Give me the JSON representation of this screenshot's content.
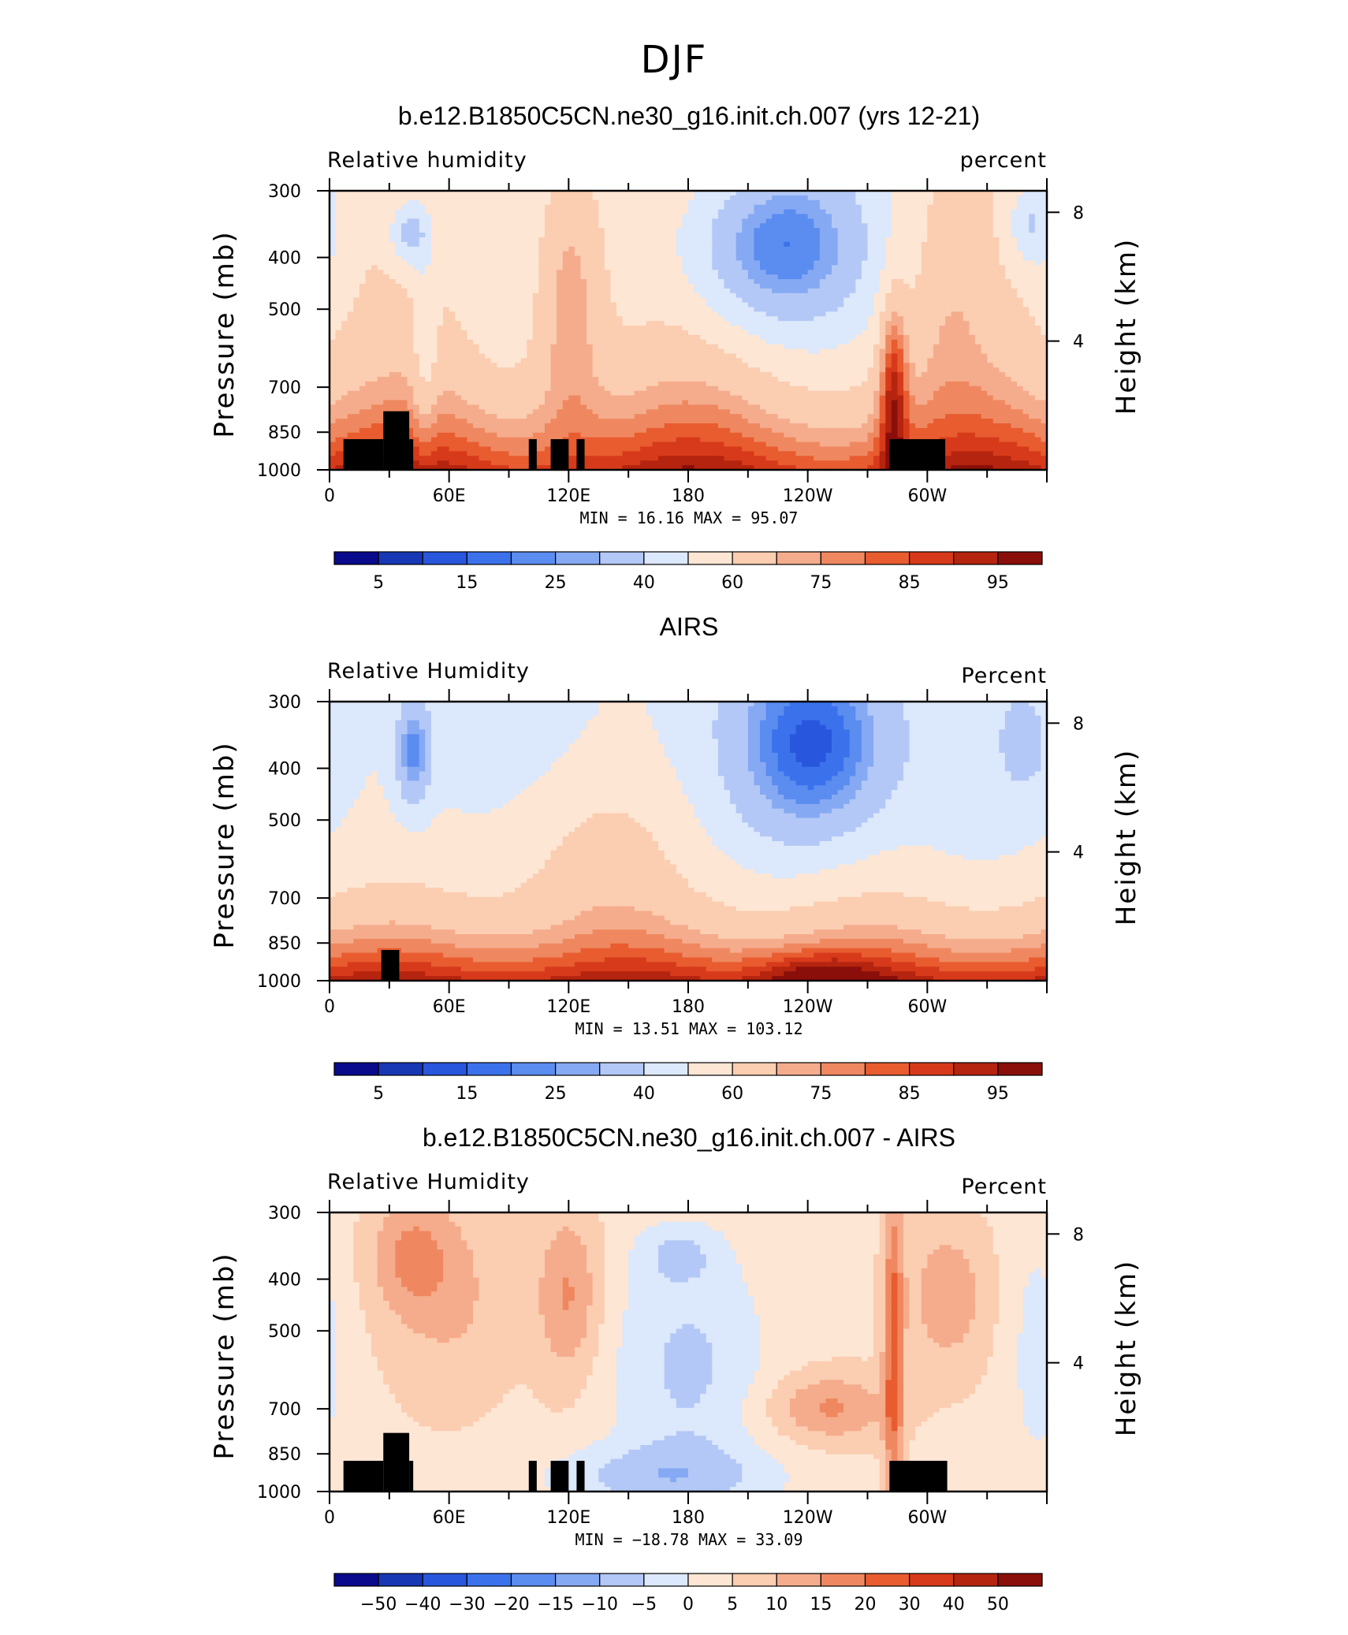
{
  "figure": {
    "title": "DJF"
  },
  "colors": {
    "abs_palette": [
      "#0a0a8c",
      "#1837b5",
      "#2856dc",
      "#3b72ec",
      "#5b8cf0",
      "#86a9f3",
      "#b3c8f6",
      "#dce8fb",
      "#fde6d4",
      "#fbcdb1",
      "#f5ac8c",
      "#ef8860",
      "#e85c30",
      "#d73a1a",
      "#b5240f",
      "#8a0f0a"
    ],
    "diff_palette": [
      "#0a0a8c",
      "#1837b5",
      "#2856dc",
      "#3b72ec",
      "#5b8cf0",
      "#86a9f3",
      "#b3c8f6",
      "#dce8fb",
      "#fde6d4",
      "#fbcdb1",
      "#f5ac8c",
      "#ef8860",
      "#e85c30",
      "#d73a1a",
      "#b5240f",
      "#8a0f0a"
    ],
    "land_mask": "#000000"
  },
  "panels": [
    {
      "title": "b.e12.B1850C5CN.ne30_g16.init.ch.007 (yrs 12-21)",
      "left_label": "Relative humidity",
      "right_label": "percent",
      "minmax": "MIN =   16.16   MAX =   95.07",
      "colorbar_labels": [
        "5",
        "15",
        "25",
        "40",
        "60",
        "75",
        "85",
        "95"
      ],
      "colorbar_label_positions": [
        1,
        3,
        5,
        7,
        9,
        11,
        13,
        15
      ]
    },
    {
      "title": "AIRS",
      "left_label": "Relative Humidity",
      "right_label": "Percent",
      "minmax": "MIN =   13.51   MAX =  103.12",
      "colorbar_labels": [
        "5",
        "15",
        "25",
        "40",
        "60",
        "75",
        "85",
        "95"
      ],
      "colorbar_label_positions": [
        1,
        3,
        5,
        7,
        9,
        11,
        13,
        15
      ]
    },
    {
      "title": "b.e12.B1850C5CN.ne30_g16.init.ch.007 - AIRS",
      "left_label": "Relative Humidity",
      "right_label": "Percent",
      "minmax": "MIN =  −18.78   MAX =    33.09",
      "colorbar_labels": [
        "−50",
        "−40",
        "−30",
        "−20",
        "−15",
        "−10",
        "−5",
        "0",
        "5",
        "10",
        "15",
        "20",
        "30",
        "40",
        "50"
      ],
      "colorbar_label_positions": [
        1,
        2,
        3,
        4,
        5,
        6,
        7,
        8,
        9,
        10,
        11,
        12,
        13,
        14,
        15
      ]
    }
  ],
  "chart_data": [
    {
      "type": "heatmap",
      "title": "b.e12.B1850C5CN.ne30_g16.init.ch.007 (yrs 12-21)",
      "variable": "Relative humidity",
      "units": "percent",
      "x_ticks": [
        "0",
        "60E",
        "120E",
        "180",
        "120W",
        "60W"
      ],
      "x_range_deg_east": [
        0,
        360
      ],
      "y_ticks_pressure_mb": [
        300,
        400,
        500,
        700,
        850,
        1000
      ],
      "y_ticks_height_km": [
        8,
        4
      ],
      "ylim_mb": [
        1000,
        300
      ],
      "y_scale": "log",
      "contour_levels": [
        5,
        10,
        15,
        20,
        25,
        30,
        40,
        50,
        60,
        70,
        75,
        80,
        85,
        90,
        95
      ],
      "min": 16.16,
      "max": 95.07
    },
    {
      "type": "heatmap",
      "title": "AIRS",
      "variable": "Relative Humidity",
      "units": "Percent",
      "x_ticks": [
        "0",
        "60E",
        "120E",
        "180",
        "120W",
        "60W"
      ],
      "x_range_deg_east": [
        0,
        360
      ],
      "y_ticks_pressure_mb": [
        300,
        400,
        500,
        700,
        850,
        1000
      ],
      "y_ticks_height_km": [
        8,
        4
      ],
      "ylim_mb": [
        1000,
        300
      ],
      "y_scale": "log",
      "contour_levels": [
        5,
        10,
        15,
        20,
        25,
        30,
        40,
        50,
        60,
        70,
        75,
        80,
        85,
        90,
        95
      ],
      "min": 13.51,
      "max": 103.12
    },
    {
      "type": "heatmap",
      "title": "b.e12.B1850C5CN.ne30_g16.init.ch.007 - AIRS",
      "variable": "Relative Humidity",
      "units": "Percent",
      "x_ticks": [
        "0",
        "60E",
        "120E",
        "180",
        "120W",
        "60W"
      ],
      "x_range_deg_east": [
        0,
        360
      ],
      "y_ticks_pressure_mb": [
        300,
        400,
        500,
        700,
        850,
        1000
      ],
      "y_ticks_height_km": [
        8,
        4
      ],
      "ylim_mb": [
        1000,
        300
      ],
      "y_scale": "log",
      "contour_levels": [
        -50,
        -40,
        -30,
        -20,
        -15,
        -10,
        -5,
        0,
        5,
        10,
        15,
        20,
        30,
        40,
        50
      ],
      "min": -18.78,
      "max": 33.09
    }
  ]
}
